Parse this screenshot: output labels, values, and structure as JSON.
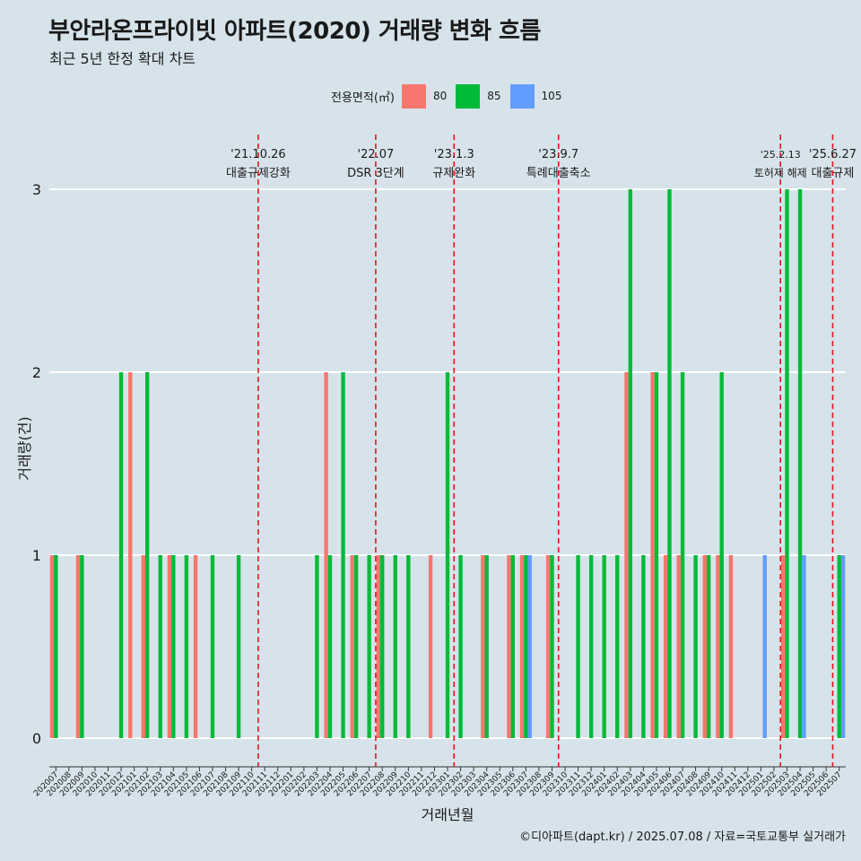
{
  "header": {
    "title": "부안라온프라이빗 아파트(2020) 거래량 변화 흐름",
    "subtitle": "최근 5년 한정 확대 차트"
  },
  "legend": {
    "title": "전용면적(㎡)",
    "items": [
      {
        "label": "80",
        "color": "#f8766d"
      },
      {
        "label": "85",
        "color": "#00ba38"
      },
      {
        "label": "105",
        "color": "#619cff"
      }
    ]
  },
  "caption": "©디아파트(dapt.kr) / 2025.07.08 / 자료=국토교통부 실거래가",
  "chart_data": {
    "type": "bar",
    "stacked": false,
    "grouped_by": "전용면적(㎡)",
    "xlabel": "거래년월",
    "ylabel": "거래량(건)",
    "ylim": [
      0,
      3
    ],
    "yticks": [
      0,
      1,
      2,
      3
    ],
    "grid": "horizontal",
    "legend_position": "top",
    "categories": [
      "202007",
      "202008",
      "202009",
      "202010",
      "202011",
      "202012",
      "202101",
      "202102",
      "202103",
      "202104",
      "202105",
      "202106",
      "202107",
      "202108",
      "202109",
      "202110",
      "202111",
      "202112",
      "202201",
      "202202",
      "202203",
      "202204",
      "202205",
      "202206",
      "202207",
      "202208",
      "202209",
      "202210",
      "202211",
      "202212",
      "202301",
      "202302",
      "202303",
      "202304",
      "202305",
      "202306",
      "202307",
      "202308",
      "202309",
      "202310",
      "202311",
      "202312",
      "202401",
      "202402",
      "202403",
      "202404",
      "202405",
      "202406",
      "202407",
      "202408",
      "202409",
      "202410",
      "202411",
      "202412",
      "202501",
      "202502",
      "202503",
      "202504",
      "202505",
      "202506",
      "202507"
    ],
    "series": [
      {
        "name": "80",
        "color": "#f8766d",
        "values": [
          1,
          0,
          1,
          0,
          0,
          0,
          2,
          1,
          0,
          1,
          0,
          1,
          0,
          0,
          0,
          0,
          0,
          0,
          0,
          0,
          0,
          2,
          0,
          1,
          0,
          1,
          0,
          0,
          0,
          1,
          0,
          0,
          0,
          1,
          0,
          1,
          1,
          0,
          1,
          0,
          0,
          0,
          0,
          0,
          2,
          0,
          2,
          1,
          1,
          0,
          1,
          1,
          1,
          0,
          0,
          0,
          1,
          0,
          0,
          0,
          0
        ]
      },
      {
        "name": "85",
        "color": "#00ba38",
        "values": [
          1,
          0,
          1,
          0,
          0,
          2,
          0,
          2,
          1,
          1,
          1,
          0,
          1,
          0,
          1,
          0,
          0,
          0,
          0,
          0,
          1,
          1,
          2,
          1,
          1,
          1,
          1,
          1,
          0,
          0,
          2,
          1,
          0,
          1,
          0,
          1,
          1,
          0,
          1,
          0,
          1,
          1,
          1,
          1,
          3,
          1,
          2,
          3,
          2,
          1,
          1,
          2,
          0,
          0,
          0,
          0,
          3,
          3,
          0,
          0,
          1
        ]
      },
      {
        "name": "105",
        "color": "#619cff",
        "values": [
          0,
          0,
          0,
          0,
          0,
          0,
          0,
          0,
          0,
          0,
          0,
          0,
          0,
          0,
          0,
          0,
          0,
          0,
          0,
          0,
          0,
          0,
          0,
          0,
          0,
          0,
          0,
          0,
          0,
          0,
          0,
          0,
          0,
          0,
          0,
          0,
          1,
          0,
          0,
          0,
          0,
          0,
          0,
          0,
          0,
          0,
          0,
          0,
          0,
          0,
          0,
          0,
          0,
          0,
          1,
          0,
          0,
          1,
          0,
          0,
          1
        ]
      }
    ],
    "annotations": [
      {
        "after_category": "202110",
        "date": "'21.10.26",
        "label": "대출규제강화"
      },
      {
        "after_category": "202207",
        "date": "'22.07",
        "label": "DSR 3단계"
      },
      {
        "after_category": "202301",
        "date": "'23.1.3",
        "label": "규제완화"
      },
      {
        "after_category": "202309",
        "date": "'23.9.7",
        "label": "특례대출축소"
      },
      {
        "after_category": "202502",
        "date": "'25.2.13",
        "label": "토허제 해제"
      },
      {
        "after_category": "202506",
        "date": "'25.6.27",
        "label": "대출규제"
      }
    ]
  }
}
